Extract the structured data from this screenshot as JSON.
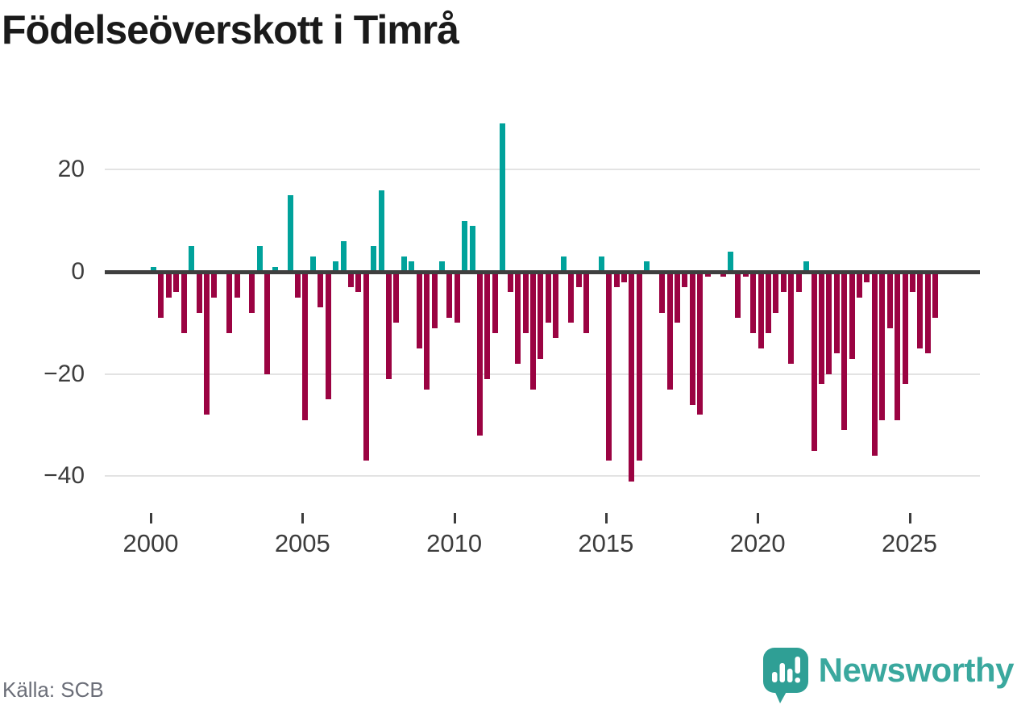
{
  "title": "Födelseöverskott i Timrå",
  "source_note": "Källa: SCB",
  "branding": {
    "wordmark": "Newsworthy",
    "bubble_color": "#2f9f95",
    "text_color": "#3aa89e"
  },
  "colors": {
    "positive_bar": "#00a29b",
    "negative_bar": "#9b0342",
    "zero_axis": "#3f3f3f",
    "gridline": "#e3e3e3",
    "tick_label": "#3d3d3d"
  },
  "chart_data": {
    "type": "bar",
    "title": "Födelseöverskott i Timrå",
    "xlabel": "",
    "ylabel": "",
    "grid": true,
    "frequency": "quarterly",
    "x_start_year": 2000,
    "x_end_year": 2025,
    "x_tick_labels": [
      "2000",
      "2005",
      "2010",
      "2015",
      "2020",
      "2025"
    ],
    "y_tick_values": [
      20,
      0,
      -20,
      -40
    ],
    "y_tick_labels": [
      "20",
      "0",
      "−20",
      "−40"
    ],
    "ylim": [
      -45,
      31
    ],
    "values": [
      1,
      -9,
      -5,
      -4,
      -12,
      5,
      -8,
      -28,
      -5,
      0,
      -12,
      -5,
      0,
      -8,
      5,
      -20,
      1,
      0,
      15,
      -5,
      -29,
      3,
      -7,
      -25,
      2,
      6,
      -3,
      -4,
      -37,
      5,
      16,
      -21,
      -10,
      3,
      2,
      -15,
      -23,
      -11,
      2,
      -9,
      -10,
      10,
      9,
      -32,
      -21,
      -12,
      29,
      -4,
      -18,
      -12,
      -23,
      -17,
      -10,
      -13,
      3,
      -10,
      -3,
      -12,
      0,
      3,
      -37,
      -3,
      -2,
      -41,
      -37,
      2,
      0,
      -8,
      -23,
      -10,
      -3,
      -26,
      -28,
      -1,
      0,
      -1,
      4,
      -9,
      -1,
      -12,
      -15,
      -12,
      -8,
      -4,
      -18,
      -4,
      2,
      -35,
      -22,
      -20,
      -16,
      -31,
      -17,
      -5,
      -2,
      -36,
      -29,
      -11,
      -29,
      -22,
      -4,
      -15,
      -16,
      -9
    ]
  }
}
